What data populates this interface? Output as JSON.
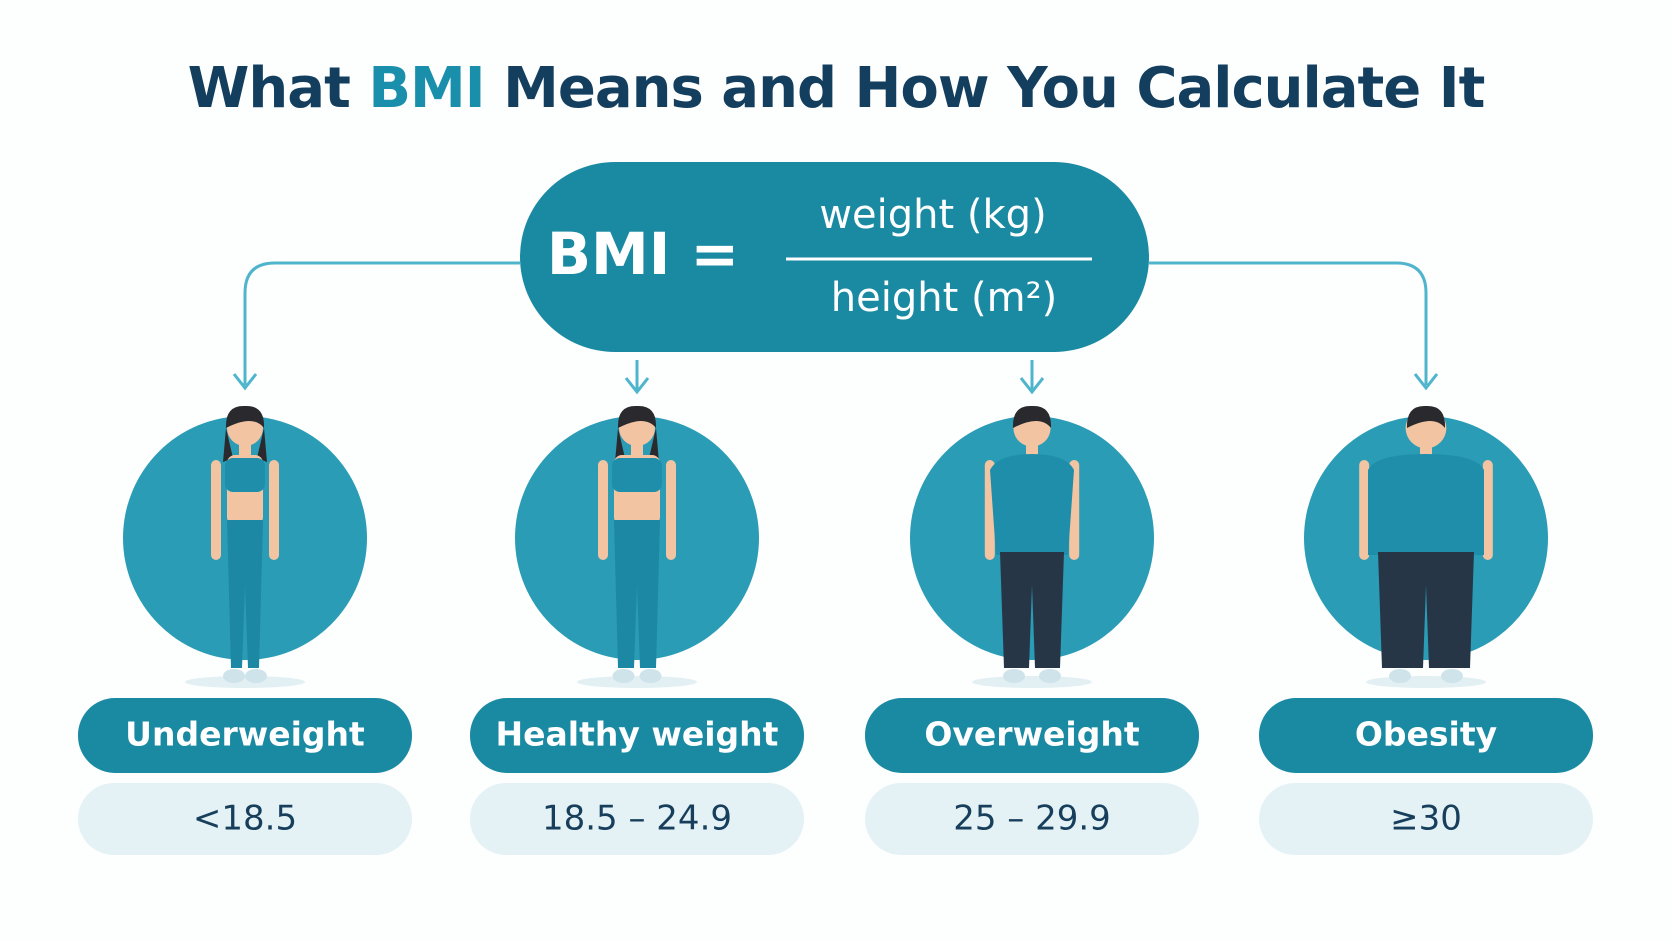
{
  "title": {
    "before": "What",
    "highlight": "BMI",
    "after": "Means and How You Calculate It"
  },
  "formula": {
    "lhs": "BMI =",
    "numerator": "weight (kg)",
    "denominator": "height (m²)"
  },
  "categories": [
    {
      "name": "Underweight",
      "range": "<18.5"
    },
    {
      "name": "Healthy weight",
      "range": "18.5 – 24.9"
    },
    {
      "name": "Overweight",
      "range": "25 – 29.9"
    },
    {
      "name": "Obesity",
      "range": "≥30"
    }
  ]
}
